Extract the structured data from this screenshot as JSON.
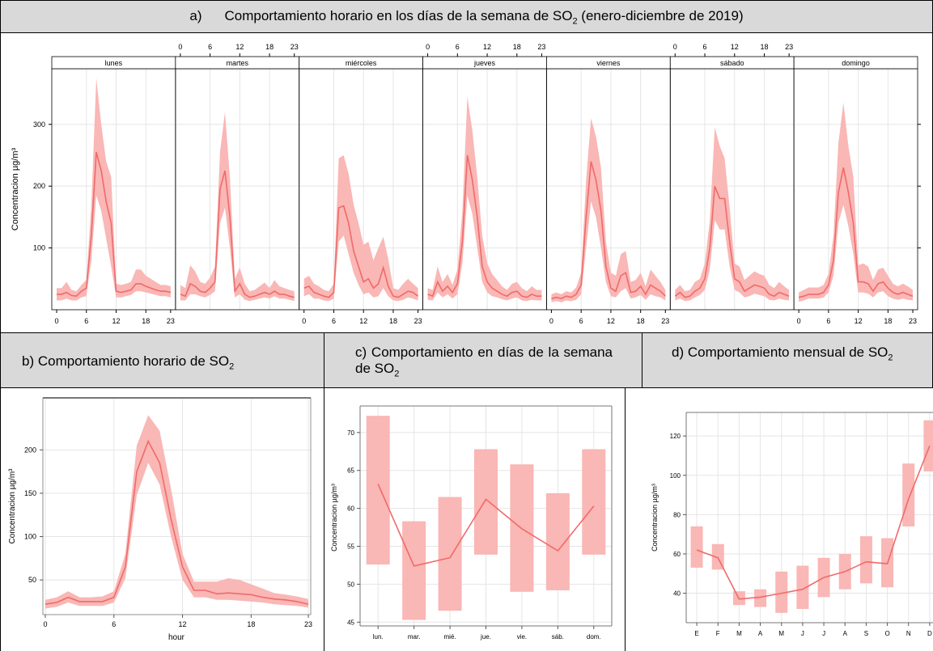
{
  "headers": {
    "a": {
      "letter": "a)",
      "text": "Comportamiento horario en los días de la semana de SO",
      "sub": "2",
      "tail": " (enero-diciembre de 2019)"
    },
    "b": {
      "text": "b) Comportamiento horario de SO",
      "sub": "2"
    },
    "c": {
      "text": "c) Comportamiento en días de la semana de SO",
      "sub": "2"
    },
    "d": {
      "text": "d) Comportamiento mensual de SO",
      "sub": "2"
    }
  },
  "colors": {
    "line": "#f06a6a",
    "band": "#f9b7b5",
    "grid": "#e5e5e5",
    "axis": "#000000"
  },
  "chart_data": [
    {
      "id": "a",
      "type": "line",
      "ylabel": "Concentracion µg/m³",
      "ylim": [
        0,
        390
      ],
      "yticks": [
        100,
        200,
        300
      ],
      "panels": [
        "lunes",
        "martes",
        "miércoles",
        "jueves",
        "viernes",
        "sábado",
        "domingo"
      ],
      "xticks": [
        "0",
        "6",
        "12",
        "18",
        "23"
      ],
      "x": [
        0,
        1,
        2,
        3,
        4,
        5,
        6,
        7,
        8,
        9,
        10,
        11,
        12,
        13,
        14,
        15,
        16,
        17,
        18,
        19,
        20,
        21,
        22,
        23
      ],
      "series": [
        {
          "panel": "lunes",
          "values": [
            25,
            25,
            28,
            23,
            22,
            30,
            35,
            120,
            255,
            225,
            175,
            140,
            30,
            28,
            30,
            32,
            42,
            42,
            38,
            35,
            32,
            30,
            30,
            28
          ],
          "lower": [
            15,
            15,
            18,
            15,
            15,
            20,
            22,
            80,
            185,
            160,
            115,
            70,
            20,
            20,
            22,
            24,
            30,
            30,
            28,
            26,
            24,
            22,
            22,
            20
          ],
          "upper": [
            35,
            35,
            45,
            32,
            30,
            40,
            48,
            170,
            375,
            300,
            240,
            215,
            42,
            40,
            42,
            45,
            65,
            65,
            55,
            50,
            45,
            40,
            40,
            38
          ]
        },
        {
          "panel": "martes",
          "values": [
            25,
            22,
            42,
            38,
            30,
            28,
            35,
            45,
            195,
            225,
            150,
            30,
            42,
            25,
            20,
            22,
            25,
            28,
            25,
            30,
            25,
            25,
            22,
            20
          ],
          "lower": [
            15,
            15,
            25,
            25,
            22,
            20,
            24,
            30,
            140,
            165,
            100,
            20,
            25,
            16,
            14,
            16,
            18,
            20,
            18,
            22,
            18,
            18,
            16,
            14
          ],
          "upper": [
            40,
            35,
            72,
            62,
            45,
            42,
            52,
            70,
            255,
            320,
            215,
            50,
            68,
            42,
            30,
            32,
            38,
            44,
            35,
            48,
            38,
            35,
            32,
            30
          ]
        },
        {
          "panel": "miércoles",
          "values": [
            35,
            38,
            28,
            25,
            22,
            20,
            28,
            165,
            168,
            140,
            95,
            70,
            45,
            50,
            35,
            42,
            68,
            38,
            22,
            20,
            25,
            30,
            28,
            22
          ],
          "lower": [
            22,
            25,
            18,
            18,
            15,
            14,
            18,
            110,
            120,
            90,
            60,
            40,
            25,
            28,
            20,
            22,
            35,
            22,
            15,
            14,
            16,
            20,
            18,
            15
          ],
          "upper": [
            50,
            55,
            42,
            38,
            32,
            30,
            42,
            245,
            250,
            220,
            170,
            140,
            105,
            110,
            80,
            100,
            118,
            82,
            35,
            32,
            42,
            50,
            42,
            35
          ]
        },
        {
          "panel": "jueves",
          "values": [
            25,
            22,
            45,
            30,
            38,
            28,
            42,
            110,
            250,
            210,
            150,
            70,
            45,
            35,
            30,
            25,
            22,
            28,
            30,
            22,
            20,
            25,
            22,
            22
          ],
          "lower": [
            16,
            15,
            28,
            20,
            25,
            18,
            25,
            75,
            185,
            155,
            100,
            45,
            28,
            22,
            20,
            17,
            15,
            18,
            20,
            15,
            14,
            16,
            15,
            15
          ],
          "upper": [
            35,
            32,
            70,
            45,
            58,
            40,
            65,
            160,
            345,
            290,
            215,
            120,
            75,
            58,
            48,
            38,
            32,
            42,
            45,
            35,
            30,
            38,
            32,
            32
          ]
        },
        {
          "panel": "viernes",
          "values": [
            18,
            20,
            18,
            22,
            20,
            25,
            40,
            150,
            240,
            210,
            160,
            70,
            35,
            30,
            55,
            60,
            28,
            30,
            38,
            25,
            40,
            35,
            30,
            22
          ],
          "lower": [
            12,
            14,
            12,
            15,
            14,
            16,
            25,
            100,
            175,
            150,
            100,
            45,
            22,
            20,
            30,
            35,
            18,
            20,
            24,
            16,
            25,
            22,
            20,
            15
          ],
          "upper": [
            25,
            28,
            25,
            30,
            28,
            36,
            60,
            210,
            310,
            280,
            230,
            110,
            60,
            55,
            90,
            95,
            45,
            48,
            60,
            38,
            65,
            55,
            45,
            32
          ]
        },
        {
          "panel": "sábado",
          "values": [
            22,
            28,
            20,
            22,
            30,
            35,
            50,
            100,
            200,
            180,
            180,
            110,
            50,
            45,
            30,
            35,
            40,
            38,
            35,
            25,
            22,
            28,
            25,
            22
          ],
          "lower": [
            15,
            18,
            14,
            15,
            20,
            24,
            32,
            65,
            145,
            130,
            130,
            70,
            32,
            28,
            20,
            22,
            26,
            24,
            22,
            16,
            15,
            18,
            16,
            15
          ],
          "upper": [
            32,
            40,
            30,
            32,
            45,
            50,
            75,
            145,
            295,
            265,
            245,
            165,
            75,
            70,
            48,
            55,
            62,
            58,
            55,
            40,
            35,
            45,
            38,
            32
          ]
        },
        {
          "panel": "domingo",
          "values": [
            20,
            22,
            25,
            25,
            25,
            28,
            40,
            80,
            190,
            230,
            190,
            140,
            45,
            45,
            42,
            30,
            42,
            45,
            35,
            28,
            25,
            28,
            25,
            22
          ],
          "lower": [
            13,
            15,
            18,
            18,
            18,
            20,
            28,
            55,
            140,
            170,
            135,
            90,
            28,
            28,
            26,
            20,
            28,
            30,
            22,
            18,
            16,
            18,
            16,
            15
          ],
          "upper": [
            28,
            32,
            36,
            36,
            36,
            40,
            58,
            120,
            270,
            335,
            265,
            215,
            72,
            75,
            70,
            48,
            65,
            68,
            55,
            42,
            38,
            42,
            38,
            32
          ]
        }
      ]
    },
    {
      "id": "b",
      "type": "line",
      "xlabel": "hour",
      "ylabel": "Concentracion µg/m³",
      "ylim": [
        10,
        260
      ],
      "yticks": [
        50,
        100,
        150,
        200
      ],
      "xticks": [
        0,
        6,
        12,
        18,
        23
      ],
      "x": [
        0,
        1,
        2,
        3,
        4,
        5,
        6,
        7,
        8,
        9,
        10,
        11,
        12,
        13,
        14,
        15,
        16,
        17,
        18,
        19,
        20,
        21,
        22,
        23
      ],
      "values": [
        22,
        24,
        30,
        25,
        25,
        25,
        30,
        65,
        175,
        210,
        185,
        120,
        65,
        38,
        38,
        34,
        35,
        34,
        33,
        30,
        28,
        27,
        25,
        22
      ],
      "lower": [
        17,
        19,
        24,
        20,
        20,
        20,
        24,
        52,
        148,
        185,
        160,
        100,
        50,
        30,
        30,
        27,
        27,
        26,
        25,
        24,
        22,
        21,
        20,
        18
      ],
      "upper": [
        27,
        30,
        37,
        30,
        30,
        31,
        37,
        80,
        205,
        240,
        222,
        155,
        80,
        48,
        48,
        48,
        52,
        50,
        45,
        40,
        35,
        33,
        31,
        28
      ]
    },
    {
      "id": "c",
      "type": "line",
      "ylabel": "Concentracion µg/m³",
      "ylim": [
        44.5,
        73.5
      ],
      "yticks": [
        45,
        50,
        55,
        60,
        65,
        70
      ],
      "categories": [
        "lun.",
        "mar.",
        "mié.",
        "jue.",
        "vie.",
        "sáb.",
        "dom."
      ],
      "values": [
        63.2,
        52.4,
        53.5,
        61.2,
        57.3,
        54.4,
        60.3
      ],
      "lower": [
        52.6,
        45.3,
        46.5,
        53.9,
        49.0,
        49.2,
        53.9
      ],
      "upper": [
        72.2,
        58.3,
        61.5,
        67.8,
        65.8,
        62.0,
        67.8
      ]
    },
    {
      "id": "d",
      "type": "line",
      "ylabel": "Concentracion µg/m³",
      "ylim": [
        25,
        132
      ],
      "yticks": [
        40,
        60,
        80,
        100,
        120
      ],
      "categories": [
        "E",
        "F",
        "M",
        "A",
        "M",
        "J",
        "J",
        "A",
        "S",
        "O",
        "N",
        "D"
      ],
      "values": [
        62,
        58,
        37,
        38,
        40,
        42,
        48,
        51,
        56,
        55,
        88,
        115
      ],
      "lower": [
        53,
        52,
        34,
        33,
        30,
        32,
        38,
        42,
        45,
        43,
        74,
        102
      ],
      "upper": [
        74,
        65,
        41,
        42,
        51,
        54,
        58,
        60,
        69,
        68,
        106,
        128
      ]
    }
  ]
}
